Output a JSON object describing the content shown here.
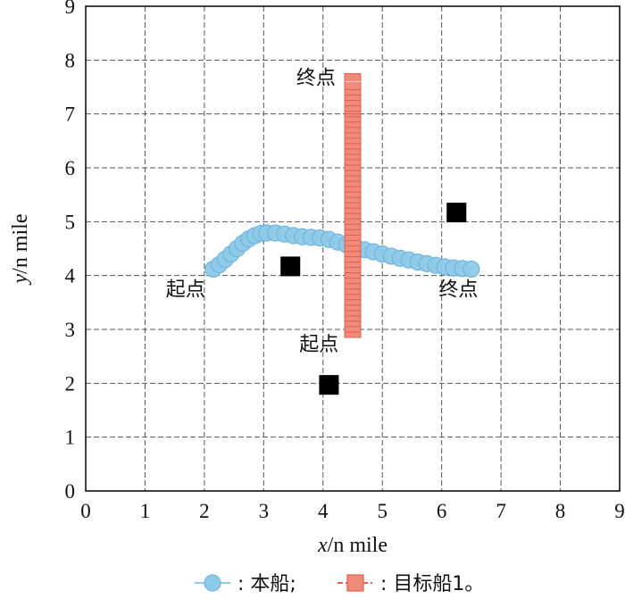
{
  "chart_data": {
    "type": "scatter",
    "xlabel_italic": "x",
    "xlabel_rest": "/n mile",
    "ylabel_italic": "y",
    "ylabel_rest": "/n mile",
    "xlim": [
      0,
      9
    ],
    "ylim": [
      0,
      9
    ],
    "xticks": [
      "0",
      "1",
      "2",
      "3",
      "4",
      "5",
      "6",
      "7",
      "8",
      "9"
    ],
    "yticks": [
      "0",
      "1",
      "2",
      "3",
      "4",
      "5",
      "6",
      "7",
      "8",
      "9"
    ],
    "grid": true,
    "series": [
      {
        "name": "本船",
        "color": "#8ecae8",
        "edge": "#6fb3de",
        "marker": "circle",
        "x": [
          2.15,
          2.25,
          2.35,
          2.45,
          2.55,
          2.65,
          2.75,
          2.85,
          2.95,
          3.05,
          3.2,
          3.35,
          3.5,
          3.65,
          3.8,
          3.95,
          4.1,
          4.25,
          4.4,
          4.55,
          4.7,
          4.85,
          5.0,
          5.15,
          5.3,
          5.45,
          5.6,
          5.75,
          5.9,
          6.05,
          6.2,
          6.35,
          6.5
        ],
        "y": [
          4.12,
          4.2,
          4.3,
          4.4,
          4.5,
          4.6,
          4.68,
          4.74,
          4.78,
          4.79,
          4.79,
          4.77,
          4.74,
          4.72,
          4.71,
          4.7,
          4.67,
          4.62,
          4.57,
          4.52,
          4.48,
          4.44,
          4.4,
          4.36,
          4.32,
          4.29,
          4.25,
          4.22,
          4.19,
          4.16,
          4.14,
          4.13,
          4.12
        ]
      },
      {
        "name": "目标船1",
        "color": "#f08a7a",
        "edge": "#e0604f",
        "marker": "square",
        "x": [
          4.5,
          4.5,
          4.5,
          4.5,
          4.5,
          4.5,
          4.5,
          4.5,
          4.5,
          4.5,
          4.5,
          4.5,
          4.5,
          4.5,
          4.5,
          4.5,
          4.5,
          4.5,
          4.5,
          4.5,
          4.5,
          4.5,
          4.5,
          4.5,
          4.5,
          4.5,
          4.5,
          4.5,
          4.5,
          4.5,
          4.5,
          4.5,
          4.5,
          4.5,
          4.5,
          4.5,
          4.5,
          4.5,
          4.5,
          4.5,
          4.5,
          4.5,
          4.5,
          4.5,
          4.5,
          4.5,
          4.5,
          4.5
        ],
        "y": [
          3.0,
          3.1,
          3.2,
          3.3,
          3.4,
          3.5,
          3.6,
          3.7,
          3.8,
          3.9,
          4.0,
          4.1,
          4.2,
          4.3,
          4.4,
          4.5,
          4.6,
          4.7,
          4.8,
          4.9,
          5.0,
          5.1,
          5.2,
          5.3,
          5.4,
          5.5,
          5.6,
          5.7,
          5.8,
          5.9,
          6.0,
          6.1,
          6.2,
          6.3,
          6.4,
          6.5,
          6.6,
          6.7,
          6.8,
          6.9,
          7.0,
          7.1,
          7.15,
          7.2,
          7.3,
          7.4,
          7.5,
          7.6
        ]
      }
    ],
    "thin_stroke": {
      "color": "#e0604f",
      "x": 4.6,
      "y_from": 2.9,
      "y_to": 7.68
    },
    "obstacles": [
      {
        "x": 3.45,
        "y": 4.17
      },
      {
        "x": 6.25,
        "y": 5.17
      },
      {
        "x": 4.1,
        "y": 1.97
      }
    ],
    "annotations": [
      {
        "text": "起点",
        "x": 1.35,
        "y": 3.62
      },
      {
        "text": "终点",
        "x": 5.95,
        "y": 3.62
      },
      {
        "text": "起点",
        "x": 3.6,
        "y": 2.6
      },
      {
        "text": "终点",
        "x": 3.55,
        "y": 7.55
      }
    ],
    "legend": {
      "position": "bottom",
      "items": [
        {
          "label": ": 本船;",
          "marker": "circle"
        },
        {
          "label": ": 目标船1。",
          "marker": "square"
        }
      ]
    }
  }
}
